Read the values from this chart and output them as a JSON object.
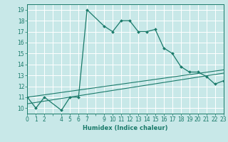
{
  "xlabel": "Humidex (Indice chaleur)",
  "bg_color": "#c8e8e8",
  "grid_color": "#ffffff",
  "line_color": "#1a7a6a",
  "xlim": [
    0,
    23
  ],
  "ylim": [
    9.5,
    19.5
  ],
  "xticks_all": [
    0,
    1,
    2,
    3,
    4,
    5,
    6,
    7,
    8,
    9,
    10,
    11,
    12,
    13,
    14,
    15,
    16,
    17,
    18,
    19,
    20,
    21,
    22,
    23
  ],
  "xtick_labels": [
    "0",
    "1",
    "2",
    "",
    "4",
    "5",
    "6",
    "7",
    "",
    "9",
    "10",
    "11",
    "12",
    "13",
    "14",
    "15",
    "16",
    "17",
    "18",
    "19",
    "20",
    "21",
    "22",
    "23"
  ],
  "yticks": [
    10,
    11,
    12,
    13,
    14,
    15,
    16,
    17,
    18,
    19
  ],
  "main_x": [
    0,
    1,
    2,
    4,
    5,
    6,
    7,
    9,
    10,
    11,
    12,
    13,
    14,
    15,
    16,
    17,
    18,
    19,
    20,
    21,
    22,
    23
  ],
  "main_y": [
    11.0,
    10.0,
    11.0,
    9.8,
    11.0,
    11.0,
    19.0,
    17.5,
    17.0,
    18.0,
    18.0,
    17.0,
    17.0,
    17.2,
    15.5,
    15.0,
    13.8,
    13.3,
    13.3,
    12.9,
    12.2,
    12.5
  ],
  "line2_x": [
    0,
    23
  ],
  "line2_y": [
    10.4,
    13.2
  ],
  "line3_x": [
    0,
    23
  ],
  "line3_y": [
    11.0,
    13.5
  ]
}
